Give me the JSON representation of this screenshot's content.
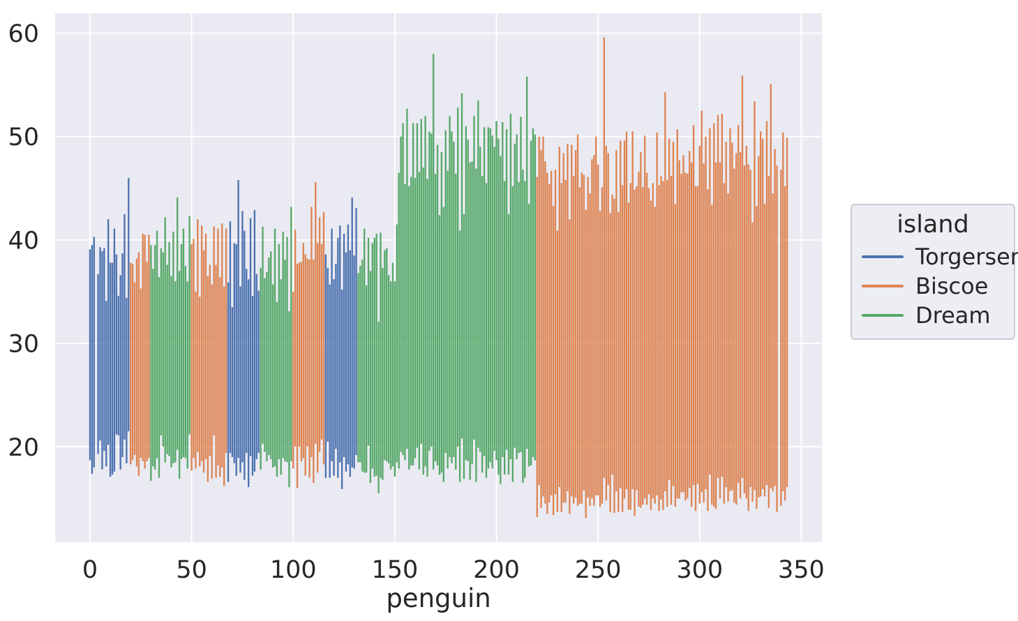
{
  "theme": {
    "figure_bg": "#ffffff",
    "axes_bg": "#eaeaf2",
    "grid_color": "#ffffff",
    "text_color": "#262626",
    "legend_bg": "#ededf4",
    "legend_border": "#cbcbd4"
  },
  "chart_data": {
    "type": "bar",
    "note": "Vertical range bars, one per penguin (index on x axis), spanning bill depth (bottom) to bill length (top) in mm, colored by island",
    "title": "",
    "xlabel": "penguin",
    "ylabel": "",
    "x_ticks": [
      0,
      50,
      100,
      150,
      200,
      250,
      300,
      350
    ],
    "y_ticks": [
      20,
      30,
      40,
      50,
      60
    ],
    "xlim": [
      -17.15,
      360.15
    ],
    "ylim": [
      10.775,
      61.925
    ],
    "grid": true,
    "bar_width": 0.8,
    "legend": {
      "title": "island",
      "position": "center-right-outside",
      "entries": [
        {
          "label": "Torgersen",
          "color": "#4C72B0"
        },
        {
          "label": "Biscoe",
          "color": "#DD8452"
        },
        {
          "label": "Dream",
          "color": "#55A868"
        }
      ]
    },
    "colors": {
      "Torgersen": "#4C72B0",
      "Biscoe": "#DD8452",
      "Dream": "#55A868"
    },
    "island_segments": [
      {
        "island": "Torgersen",
        "start": 0,
        "end": 19
      },
      {
        "island": "Biscoe",
        "start": 20,
        "end": 29
      },
      {
        "island": "Dream",
        "start": 30,
        "end": 49
      },
      {
        "island": "Biscoe",
        "start": 50,
        "end": 67
      },
      {
        "island": "Torgersen",
        "start": 68,
        "end": 83
      },
      {
        "island": "Dream",
        "start": 84,
        "end": 99
      },
      {
        "island": "Biscoe",
        "start": 100,
        "end": 115
      },
      {
        "island": "Torgersen",
        "start": 116,
        "end": 131
      },
      {
        "island": "Dream",
        "start": 132,
        "end": 219
      },
      {
        "island": "Biscoe",
        "start": 220,
        "end": 343
      }
    ],
    "bars": [
      [
        18.7,
        39.1
      ],
      [
        17.4,
        39.5
      ],
      [
        18.0,
        40.3
      ],
      null,
      [
        19.3,
        36.7
      ],
      [
        20.6,
        39.3
      ],
      [
        17.8,
        38.9
      ],
      [
        19.6,
        39.2
      ],
      [
        18.1,
        34.1
      ],
      [
        20.2,
        42.0
      ],
      [
        17.1,
        37.8
      ],
      [
        17.3,
        37.8
      ],
      [
        17.6,
        41.1
      ],
      [
        21.2,
        38.6
      ],
      [
        21.1,
        34.6
      ],
      [
        17.8,
        36.6
      ],
      [
        19.0,
        38.7
      ],
      [
        20.7,
        42.5
      ],
      [
        18.4,
        34.4
      ],
      [
        21.5,
        46.0
      ],
      [
        18.3,
        37.8
      ],
      [
        18.7,
        37.7
      ],
      [
        19.2,
        35.9
      ],
      [
        18.1,
        38.2
      ],
      [
        17.2,
        38.8
      ],
      [
        18.9,
        35.3
      ],
      [
        18.6,
        40.6
      ],
      [
        17.9,
        40.5
      ],
      [
        18.6,
        37.9
      ],
      [
        18.9,
        40.5
      ],
      [
        16.7,
        39.5
      ],
      [
        18.1,
        37.2
      ],
      [
        17.8,
        39.5
      ],
      [
        18.9,
        40.9
      ],
      [
        17.0,
        36.4
      ],
      [
        21.1,
        39.2
      ],
      [
        20.0,
        38.8
      ],
      [
        18.5,
        42.2
      ],
      [
        19.3,
        37.6
      ],
      [
        19.1,
        39.8
      ],
      [
        18.0,
        36.5
      ],
      [
        18.4,
        40.8
      ],
      [
        18.5,
        36.0
      ],
      [
        19.7,
        44.1
      ],
      [
        16.9,
        37.0
      ],
      [
        18.8,
        39.6
      ],
      [
        19.0,
        41.1
      ],
      [
        18.9,
        37.5
      ],
      [
        17.9,
        36.0
      ],
      [
        21.2,
        42.3
      ],
      [
        17.7,
        39.6
      ],
      [
        18.9,
        40.1
      ],
      [
        17.9,
        35.0
      ],
      [
        19.5,
        42.0
      ],
      [
        18.1,
        34.5
      ],
      [
        18.6,
        41.4
      ],
      [
        17.5,
        39.0
      ],
      [
        18.8,
        40.6
      ],
      [
        16.6,
        36.5
      ],
      [
        19.1,
        37.6
      ],
      [
        16.9,
        35.7
      ],
      [
        21.1,
        41.3
      ],
      [
        17.0,
        37.6
      ],
      [
        18.2,
        41.1
      ],
      [
        17.1,
        36.4
      ],
      [
        18.0,
        41.6
      ],
      [
        16.2,
        35.5
      ],
      [
        19.4,
        41.1
      ],
      [
        16.6,
        35.9
      ],
      [
        19.4,
        41.8
      ],
      [
        19.0,
        33.5
      ],
      [
        18.4,
        39.7
      ],
      [
        17.2,
        39.6
      ],
      [
        18.9,
        45.8
      ],
      [
        17.5,
        35.5
      ],
      [
        18.5,
        42.8
      ],
      [
        16.8,
        40.9
      ],
      [
        19.4,
        37.2
      ],
      [
        16.1,
        36.2
      ],
      [
        19.1,
        42.1
      ],
      [
        17.2,
        34.6
      ],
      [
        17.6,
        42.9
      ],
      [
        18.8,
        36.7
      ],
      [
        19.4,
        35.1
      ],
      [
        17.8,
        37.3
      ],
      [
        20.3,
        41.3
      ],
      [
        19.5,
        36.3
      ],
      [
        18.6,
        36.9
      ],
      [
        19.2,
        38.3
      ],
      [
        18.8,
        38.9
      ],
      [
        18.0,
        35.7
      ],
      [
        18.1,
        41.1
      ],
      [
        17.1,
        34.0
      ],
      [
        18.8,
        39.6
      ],
      [
        17.3,
        36.2
      ],
      [
        18.9,
        40.8
      ],
      [
        18.6,
        38.1
      ],
      [
        18.5,
        40.3
      ],
      [
        16.1,
        33.1
      ],
      [
        18.6,
        43.2
      ],
      [
        17.9,
        35.0
      ],
      [
        20.0,
        41.0
      ],
      [
        16.0,
        37.7
      ],
      [
        20.0,
        37.8
      ],
      [
        18.6,
        37.9
      ],
      [
        18.9,
        39.7
      ],
      [
        17.2,
        38.6
      ],
      [
        20.0,
        38.2
      ],
      [
        17.0,
        38.1
      ],
      [
        19.0,
        43.2
      ],
      [
        16.5,
        38.1
      ],
      [
        20.3,
        45.6
      ],
      [
        17.5,
        39.7
      ],
      [
        19.5,
        42.2
      ],
      [
        20.7,
        39.6
      ],
      [
        18.3,
        42.7
      ],
      [
        17.0,
        38.6
      ],
      [
        20.5,
        37.3
      ],
      [
        17.0,
        35.7
      ],
      [
        18.6,
        41.1
      ],
      [
        17.2,
        36.2
      ],
      [
        19.8,
        37.7
      ],
      [
        17.0,
        40.2
      ],
      [
        18.5,
        41.4
      ],
      [
        15.9,
        35.2
      ],
      [
        19.0,
        40.6
      ],
      [
        17.6,
        38.8
      ],
      [
        18.3,
        41.5
      ],
      [
        17.1,
        39.0
      ],
      [
        18.0,
        44.1
      ],
      [
        17.9,
        38.5
      ],
      [
        19.2,
        43.1
      ],
      [
        18.5,
        36.8
      ],
      [
        18.5,
        37.5
      ],
      [
        17.6,
        38.1
      ],
      [
        17.5,
        41.1
      ],
      [
        17.5,
        35.6
      ],
      [
        20.1,
        40.2
      ],
      [
        16.5,
        37.0
      ],
      [
        17.9,
        39.7
      ],
      [
        17.1,
        40.2
      ],
      [
        17.2,
        40.6
      ],
      [
        15.5,
        32.1
      ],
      [
        17.0,
        40.7
      ],
      [
        16.8,
        37.3
      ],
      [
        18.7,
        39.0
      ],
      [
        18.6,
        39.2
      ],
      [
        18.4,
        36.6
      ],
      [
        17.8,
        36.0
      ],
      [
        18.1,
        37.8
      ],
      [
        17.1,
        36.0
      ],
      [
        18.5,
        41.5
      ],
      [
        17.9,
        46.5
      ],
      [
        19.5,
        50.0
      ],
      [
        19.2,
        51.3
      ],
      [
        18.7,
        45.4
      ],
      [
        19.8,
        52.7
      ],
      [
        17.8,
        45.2
      ],
      [
        18.2,
        46.1
      ],
      [
        18.2,
        51.3
      ],
      [
        18.9,
        46.0
      ],
      [
        19.9,
        51.3
      ],
      [
        17.8,
        46.6
      ],
      [
        20.3,
        51.7
      ],
      [
        17.3,
        47.0
      ],
      [
        18.1,
        52.0
      ],
      [
        17.1,
        45.9
      ],
      [
        19.6,
        50.5
      ],
      [
        20.0,
        50.3
      ],
      [
        17.8,
        58.0
      ],
      [
        18.6,
        46.4
      ],
      [
        18.2,
        49.2
      ],
      [
        17.3,
        42.4
      ],
      [
        17.5,
        48.5
      ],
      [
        16.6,
        43.2
      ],
      [
        19.4,
        50.6
      ],
      [
        17.9,
        46.7
      ],
      [
        19.0,
        52.0
      ],
      [
        18.4,
        50.5
      ],
      [
        19.0,
        49.5
      ],
      [
        17.8,
        46.4
      ],
      [
        20.0,
        52.8
      ],
      [
        16.6,
        40.9
      ],
      [
        20.8,
        54.2
      ],
      [
        16.9,
        42.5
      ],
      [
        18.7,
        51.0
      ],
      [
        18.6,
        49.7
      ],
      [
        16.8,
        47.5
      ],
      [
        18.3,
        47.6
      ],
      [
        20.7,
        52.0
      ],
      [
        16.6,
        46.9
      ],
      [
        19.9,
        53.5
      ],
      [
        19.5,
        49.0
      ],
      [
        17.5,
        46.2
      ],
      [
        19.1,
        50.9
      ],
      [
        17.0,
        45.5
      ],
      [
        17.9,
        50.9
      ],
      [
        18.5,
        50.8
      ],
      [
        17.9,
        50.1
      ],
      [
        19.6,
        49.0
      ],
      [
        18.7,
        51.5
      ],
      [
        17.3,
        49.8
      ],
      [
        16.4,
        48.1
      ],
      [
        19.0,
        51.4
      ],
      [
        17.3,
        45.7
      ],
      [
        19.7,
        50.7
      ],
      [
        17.3,
        42.5
      ],
      [
        18.8,
        52.2
      ],
      [
        16.6,
        45.2
      ],
      [
        19.9,
        49.3
      ],
      [
        18.8,
        50.2
      ],
      [
        19.4,
        45.6
      ],
      [
        19.5,
        51.9
      ],
      [
        16.5,
        46.8
      ],
      [
        17.0,
        45.7
      ],
      [
        19.8,
        55.8
      ],
      [
        18.1,
        43.5
      ],
      [
        18.2,
        49.6
      ],
      [
        19.0,
        50.8
      ],
      [
        18.7,
        50.2
      ],
      [
        13.2,
        46.1
      ],
      [
        16.3,
        50.0
      ],
      [
        14.1,
        48.7
      ],
      [
        15.2,
        50.0
      ],
      [
        14.5,
        47.6
      ],
      [
        13.5,
        46.5
      ],
      [
        14.6,
        45.4
      ],
      [
        15.3,
        46.7
      ],
      [
        13.4,
        43.3
      ],
      [
        15.4,
        46.8
      ],
      [
        13.7,
        40.9
      ],
      [
        16.1,
        49.0
      ],
      [
        13.7,
        45.5
      ],
      [
        14.6,
        48.4
      ],
      [
        14.6,
        45.8
      ],
      [
        15.7,
        49.3
      ],
      [
        13.5,
        42.0
      ],
      [
        15.2,
        49.2
      ],
      [
        14.5,
        46.2
      ],
      [
        15.1,
        48.7
      ],
      [
        14.3,
        50.2
      ],
      [
        14.5,
        45.1
      ],
      [
        14.5,
        46.5
      ],
      [
        15.8,
        46.3
      ],
      [
        13.1,
        42.9
      ],
      [
        15.1,
        46.1
      ],
      [
        14.3,
        44.5
      ],
      [
        15.0,
        47.8
      ],
      [
        14.3,
        48.2
      ],
      [
        15.3,
        50.0
      ],
      [
        15.3,
        47.3
      ],
      [
        14.2,
        42.8
      ],
      [
        14.5,
        45.1
      ],
      [
        17.0,
        59.6
      ],
      [
        14.8,
        49.1
      ],
      [
        16.3,
        48.4
      ],
      [
        13.7,
        42.6
      ],
      [
        17.3,
        44.4
      ],
      [
        13.6,
        44.0
      ],
      [
        15.7,
        48.7
      ],
      [
        13.7,
        42.7
      ],
      [
        16.0,
        49.6
      ],
      [
        13.7,
        45.3
      ],
      [
        15.0,
        49.6
      ],
      [
        15.9,
        50.5
      ],
      [
        13.9,
        43.6
      ],
      [
        13.9,
        45.5
      ],
      [
        15.9,
        50.5
      ],
      [
        13.3,
        44.9
      ],
      [
        15.8,
        45.2
      ],
      [
        14.2,
        46.6
      ],
      [
        14.1,
        48.5
      ],
      [
        14.4,
        45.1
      ],
      [
        15.0,
        50.1
      ],
      [
        14.4,
        46.5
      ],
      [
        15.4,
        45.0
      ],
      [
        13.9,
        43.8
      ],
      [
        15.0,
        45.5
      ],
      [
        14.5,
        43.2
      ],
      [
        15.3,
        50.4
      ],
      [
        13.8,
        45.3
      ],
      [
        14.9,
        46.2
      ],
      [
        13.9,
        45.7
      ],
      [
        15.7,
        54.3
      ],
      [
        14.2,
        45.8
      ],
      [
        16.8,
        49.8
      ],
      [
        14.4,
        46.2
      ],
      [
        16.2,
        49.5
      ],
      [
        14.2,
        43.5
      ],
      [
        15.0,
        50.7
      ],
      [
        15.0,
        47.7
      ],
      [
        15.6,
        46.4
      ],
      [
        15.6,
        48.2
      ],
      [
        14.8,
        46.5
      ],
      [
        15.0,
        46.4
      ],
      [
        16.0,
        48.6
      ],
      [
        14.2,
        47.5
      ],
      [
        16.3,
        51.1
      ],
      [
        13.8,
        45.2
      ],
      [
        16.4,
        45.2
      ],
      [
        14.5,
        49.1
      ],
      [
        15.6,
        52.5
      ],
      [
        14.6,
        47.4
      ],
      [
        15.9,
        50.0
      ],
      [
        13.8,
        44.9
      ],
      [
        17.3,
        50.8
      ],
      [
        14.4,
        43.4
      ],
      [
        14.2,
        51.3
      ],
      [
        14.0,
        47.5
      ],
      [
        17.0,
        52.1
      ],
      [
        15.0,
        47.5
      ],
      [
        17.1,
        52.2
      ],
      [
        14.5,
        45.5
      ],
      [
        16.1,
        49.5
      ],
      [
        14.7,
        44.5
      ],
      [
        15.7,
        50.8
      ],
      [
        15.8,
        49.4
      ],
      [
        14.6,
        46.9
      ],
      [
        14.4,
        48.4
      ],
      [
        16.5,
        51.1
      ],
      [
        15.0,
        48.5
      ],
      [
        17.0,
        55.9
      ],
      [
        15.5,
        47.2
      ],
      [
        15.0,
        49.1
      ],
      [
        13.8,
        47.3
      ],
      [
        16.1,
        46.8
      ],
      [
        14.7,
        41.7
      ],
      [
        15.8,
        53.4
      ],
      [
        14.0,
        43.3
      ],
      [
        15.1,
        48.1
      ],
      [
        15.2,
        50.5
      ],
      [
        15.9,
        49.8
      ],
      [
        15.2,
        43.5
      ],
      [
        16.3,
        51.5
      ],
      [
        14.1,
        46.2
      ],
      [
        16.0,
        55.1
      ],
      [
        15.7,
        44.5
      ],
      [
        16.2,
        48.8
      ],
      [
        13.7,
        47.2
      ],
      null,
      [
        14.3,
        46.8
      ],
      [
        15.7,
        50.4
      ],
      [
        14.8,
        45.2
      ],
      [
        16.1,
        49.9
      ]
    ]
  }
}
